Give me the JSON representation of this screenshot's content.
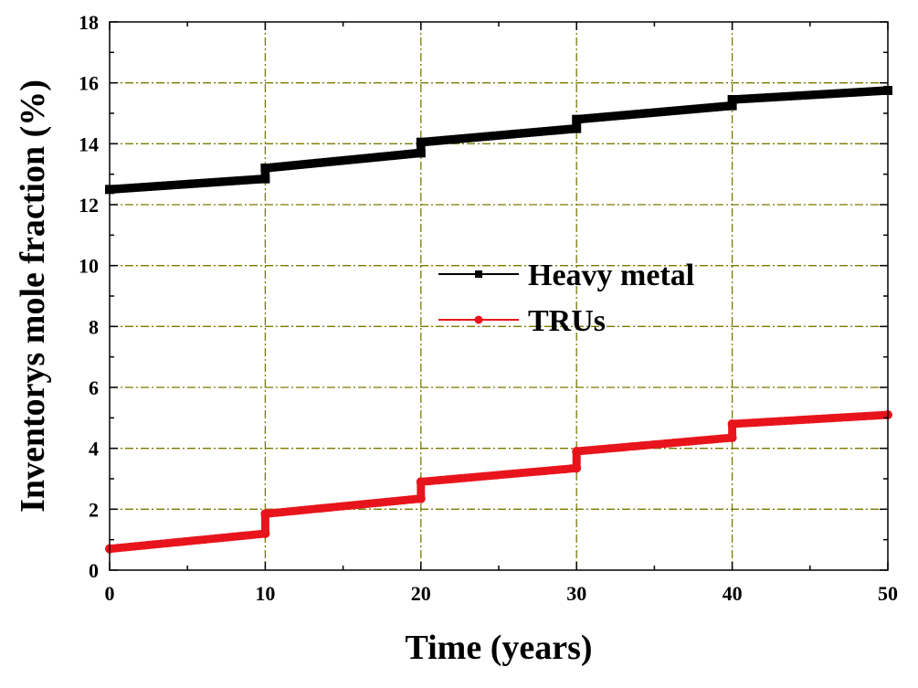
{
  "chart_data": {
    "type": "line",
    "xlabel": "Time (years)",
    "ylabel": "Inventorys mole fraction (%)",
    "xlim": [
      0,
      50
    ],
    "ylim": [
      0,
      18
    ],
    "xticks": [
      0,
      10,
      20,
      30,
      40,
      50
    ],
    "yticks": [
      0,
      2,
      4,
      6,
      8,
      10,
      12,
      14,
      16,
      18
    ],
    "grid": true,
    "legend_position": "center",
    "series": [
      {
        "name": "Heavy metal",
        "color": "#000000",
        "marker": "square",
        "x": [
          0,
          10,
          10,
          20,
          20,
          30,
          30,
          40,
          40,
          50
        ],
        "y": [
          12.5,
          12.85,
          13.2,
          13.7,
          14.05,
          14.5,
          14.8,
          15.25,
          15.45,
          15.75
        ]
      },
      {
        "name": "TRUs",
        "color": "#e8141c",
        "marker": "circle",
        "x": [
          0,
          10,
          10,
          20,
          20,
          30,
          30,
          40,
          40,
          50
        ],
        "y": [
          0.7,
          1.2,
          1.85,
          2.35,
          2.9,
          3.35,
          3.9,
          4.35,
          4.8,
          5.1
        ]
      }
    ]
  }
}
